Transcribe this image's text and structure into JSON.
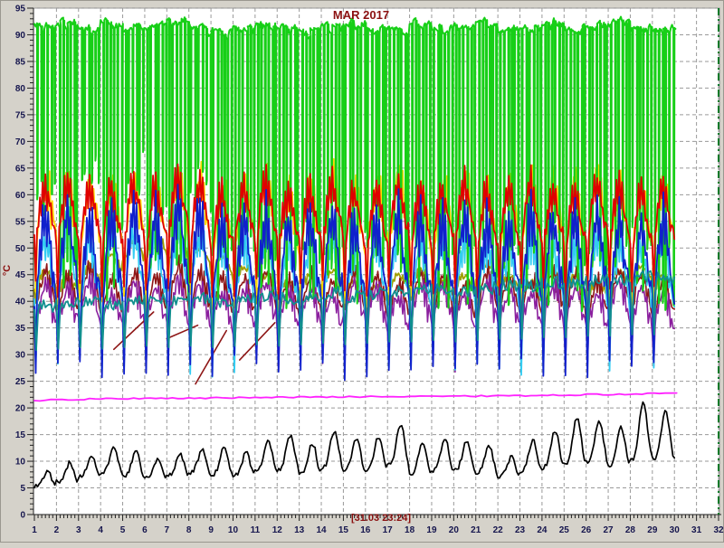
{
  "window": {
    "background": "#d5d2ca"
  },
  "chart_data": {
    "type": "line",
    "title": "MAR 2017",
    "ylabel": "°C",
    "footer_cursor_label": "[31.03 23:24]",
    "grid": true,
    "legend": "none",
    "x_axis": {
      "min": 1,
      "max": 32,
      "major_step": 1,
      "minor_per_major": 6,
      "tick_labels": [
        1,
        2,
        3,
        4,
        5,
        6,
        7,
        8,
        9,
        10,
        11,
        12,
        13,
        14,
        15,
        16,
        17,
        18,
        19,
        20,
        21,
        22,
        23,
        24,
        25,
        26,
        27,
        28,
        29,
        30,
        31,
        32
      ]
    },
    "y_axis": {
      "min": 0,
      "max": 95,
      "major_step": 5,
      "minor_step": 1,
      "tick_labels": [
        0,
        5,
        10,
        15,
        20,
        25,
        30,
        35,
        40,
        45,
        50,
        55,
        60,
        65,
        70,
        75,
        80,
        85,
        90,
        95
      ]
    },
    "data_end_day": 30.05,
    "marker_line": {
      "x_day": 32,
      "color": "#0a7a2a",
      "style": "dash-dot"
    },
    "colors": {
      "grid": "#9a9a9a",
      "axis": "#222222",
      "tick_label": "#15154d",
      "title": "#8b1010",
      "plot_bg": "#ffffff",
      "plot_border": "#8c8c8c"
    },
    "series": [
      {
        "name": "series-olive",
        "color": "#a0a000",
        "kind": "daily",
        "width": 1.8,
        "daily_peak": [
          47,
          46,
          48,
          50,
          53,
          55,
          54,
          52,
          50,
          48,
          46,
          45,
          46,
          47,
          45,
          44,
          46,
          47,
          45,
          46,
          48,
          46,
          45,
          47,
          46,
          45,
          47,
          48,
          46,
          47
        ],
        "daily_trough": [
          38,
          37,
          39,
          40,
          42,
          43,
          42,
          41,
          40,
          39,
          38,
          37,
          38,
          39,
          37,
          36,
          38,
          39,
          37,
          38,
          40,
          38,
          37,
          39,
          38,
          37,
          39,
          40,
          38,
          39
        ]
      },
      {
        "name": "series-maroon",
        "color": "#8e1616",
        "kind": "daily",
        "width": 1.6,
        "daily_peak": [
          48,
          47,
          49,
          46,
          48,
          47,
          49,
          48,
          46,
          47,
          48,
          46,
          47,
          46,
          48,
          47,
          46,
          48,
          47,
          46,
          48,
          47,
          46,
          48,
          47,
          46,
          48,
          47,
          46,
          47
        ],
        "daily_trough": [
          28,
          29,
          28,
          30,
          28,
          29,
          28,
          28,
          29,
          28,
          30,
          28,
          29,
          28,
          30,
          29,
          28,
          29,
          30,
          28,
          29,
          28,
          30,
          28,
          29,
          28,
          30,
          29,
          28,
          29
        ]
      },
      {
        "name": "series-purple",
        "color": "#8b1f9e",
        "kind": "daily",
        "width": 1.6,
        "daily_peak": [
          46,
          45,
          47,
          44,
          46,
          45,
          47,
          46,
          44,
          45,
          46,
          44,
          45,
          44,
          46,
          45,
          44,
          46,
          45,
          44,
          46,
          45,
          44,
          46,
          45,
          44,
          46,
          45,
          44,
          45
        ],
        "daily_trough": [
          25,
          26,
          25,
          27,
          25,
          26,
          25,
          25,
          26,
          25,
          27,
          25,
          26,
          25,
          27,
          26,
          25,
          26,
          27,
          25,
          26,
          25,
          27,
          25,
          26,
          25,
          27,
          26,
          25,
          26
        ]
      },
      {
        "name": "series-maroon-ramp",
        "color": "#8e1616",
        "kind": "segments",
        "width": 1.6,
        "segments": [
          [
            [
              4.6,
              31
            ],
            [
              6.4,
              38
            ]
          ],
          [
            [
              7.0,
              33
            ],
            [
              8.4,
              35.5
            ]
          ],
          [
            [
              8.3,
              24.5
            ],
            [
              9.7,
              34.5
            ]
          ],
          [
            [
              10.3,
              29
            ],
            [
              11.9,
              36
            ]
          ]
        ]
      },
      {
        "name": "series-cyan",
        "color": "#33ccf2",
        "kind": "daily",
        "width": 1.8,
        "daily_peak": [
          56,
          57,
          55,
          56,
          57,
          56,
          58,
          57,
          54,
          55,
          56,
          54,
          55,
          56,
          54,
          55,
          56,
          55,
          54,
          56,
          55,
          54,
          56,
          55,
          54,
          56,
          55,
          54,
          55,
          56
        ],
        "daily_trough": [
          23,
          23,
          23.5,
          23,
          23,
          23.5,
          23,
          23,
          23,
          23.5,
          23,
          23,
          23.5,
          23,
          23,
          23.5,
          23,
          23,
          23.5,
          23,
          23,
          23.5,
          23,
          23,
          23.5,
          23,
          23,
          23.5,
          23,
          23
        ]
      },
      {
        "name": "series-yellow",
        "color": "#ffd900",
        "kind": "daily",
        "width": 1.8,
        "daily_peak": [
          66,
          66.5,
          65,
          66,
          66.5,
          65.5,
          67.5,
          66.5,
          64.5,
          65.5,
          66.5,
          65,
          65.5,
          66.5,
          64.5,
          65.5,
          66.5,
          65,
          65.5,
          66.5,
          64.5,
          65.5,
          66.5,
          65.5,
          65,
          66.5,
          65.5,
          64.5,
          66,
          65.5
        ],
        "daily_trough": [
          36,
          35,
          37,
          34,
          36,
          35,
          37,
          36,
          34,
          35,
          36,
          34,
          35,
          36,
          34,
          35,
          36,
          35,
          34,
          36,
          35,
          34,
          36,
          35,
          34,
          36,
          35,
          34,
          35,
          36
        ]
      },
      {
        "name": "series-green",
        "color": "#17cf17",
        "kind": "square",
        "width": 2,
        "cycles_per_day": 6,
        "duty": 0.62,
        "daily_peak": [
          91.5,
          92,
          91,
          92,
          91.5,
          92,
          92.5,
          91,
          90.5,
          91,
          92,
          91,
          90.5,
          91.5,
          92,
          91,
          90.5,
          92,
          91,
          91.5,
          92,
          90.5,
          91,
          92,
          91,
          91.5,
          92,
          91,
          90.5,
          91.5
        ],
        "daily_trough": [
          55,
          42,
          60,
          40,
          58,
          44,
          38,
          56,
          40,
          39,
          41,
          38,
          40,
          39,
          38,
          41,
          39,
          40,
          38,
          39,
          41,
          38,
          40,
          39,
          38,
          40,
          39,
          41,
          38,
          40
        ]
      },
      {
        "name": "series-red",
        "color": "#e00000",
        "kind": "daily",
        "width": 1.8,
        "daily_peak": [
          64,
          65,
          63.5,
          64.5,
          65,
          64,
          66,
          65,
          63,
          64,
          65,
          63.5,
          64,
          65,
          63,
          64,
          65,
          63.5,
          64,
          65,
          63,
          64,
          65,
          64,
          63.5,
          65,
          64,
          63,
          64.5,
          64
        ],
        "daily_trough": [
          39,
          38,
          40,
          37,
          39,
          38,
          40,
          39,
          37,
          38,
          39,
          37,
          38,
          39,
          37,
          38,
          39,
          38,
          37,
          39,
          38,
          37,
          39,
          38,
          37,
          39,
          38,
          37,
          38,
          39
        ]
      },
      {
        "name": "series-blue",
        "color": "#1020cc",
        "kind": "daily",
        "width": 1.8,
        "daily_peak": [
          60,
          61,
          59,
          60,
          61,
          60,
          62,
          61,
          58,
          59,
          60,
          58,
          59,
          60,
          58,
          59,
          60,
          59,
          58,
          60,
          59,
          58,
          60,
          59,
          58,
          60,
          59,
          58,
          59,
          60
        ],
        "daily_trough": [
          22,
          22,
          22.5,
          22,
          22,
          22.5,
          22,
          22,
          22,
          22.5,
          22,
          22,
          22.5,
          22,
          22,
          22.5,
          22,
          22,
          22.5,
          22,
          22,
          22.5,
          22,
          22,
          22.5,
          22,
          22,
          22.5,
          22,
          22
        ]
      },
      {
        "name": "series-teal",
        "color": "#118f8f",
        "kind": "basedip",
        "width": 1.8,
        "dip_value": 21.5,
        "daily_base": [
          39,
          39.5,
          40,
          39.5,
          40,
          40.5,
          40,
          40.5,
          40,
          40.5,
          41,
          40.5,
          41,
          41.5,
          41,
          41.5,
          42,
          42,
          42.5,
          42,
          42.5,
          43,
          43,
          43.5,
          43.5,
          44,
          44,
          44.5,
          44.5,
          45
        ]
      },
      {
        "name": "series-magenta",
        "color": "#ff22ff",
        "kind": "smooth",
        "width": 1.8,
        "points": [
          [
            1,
            21.4
          ],
          [
            4,
            21.7
          ],
          [
            8,
            21.8
          ],
          [
            12,
            22.0
          ],
          [
            16,
            22.1
          ],
          [
            20,
            22.2
          ],
          [
            23,
            22.3
          ],
          [
            26,
            22.5
          ],
          [
            28,
            22.6
          ],
          [
            30.1,
            22.8
          ]
        ]
      },
      {
        "name": "series-black-outdoor",
        "color": "#000000",
        "kind": "outdoor",
        "width": 1.7,
        "daily_peak": [
          8,
          9.5,
          11,
          12.5,
          11.5,
          10,
          11,
          12,
          12.5,
          11.5,
          13.5,
          14.5,
          13,
          15.5,
          14,
          14.5,
          16.5,
          13,
          14,
          13.5,
          12.5,
          10.5,
          13.5,
          15.5,
          18,
          17,
          16,
          20.5,
          19,
          17.5
        ],
        "daily_trough": [
          5,
          6,
          7,
          7.5,
          7,
          6.5,
          7,
          7.5,
          7,
          7,
          8,
          8,
          7.5,
          8.5,
          8,
          8,
          9,
          7.5,
          8,
          8,
          7.5,
          7,
          8,
          8.5,
          9,
          9.5,
          9,
          10,
          10,
          10.5
        ]
      }
    ]
  }
}
